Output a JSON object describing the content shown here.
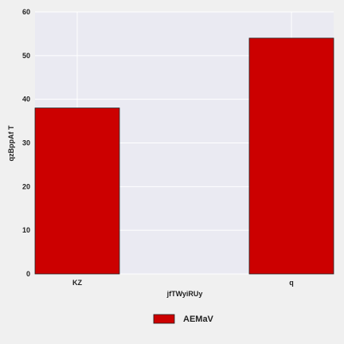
{
  "chart_data": {
    "type": "bar",
    "categories": [
      "KZ",
      "q"
    ],
    "series": [
      {
        "name": "AEMaV",
        "values": [
          38,
          54
        ],
        "color": "#cc0000"
      }
    ],
    "xlabel": "jfTWyiRUy",
    "ylabel": "qzBppAf T",
    "ylim": [
      0,
      60
    ],
    "yticks": [
      0,
      10,
      20,
      30,
      40,
      50,
      60
    ],
    "grid": true,
    "legend_position": "bottom-center",
    "plot_background": "#eaeaf2",
    "page_background": "#f0f0f0"
  }
}
